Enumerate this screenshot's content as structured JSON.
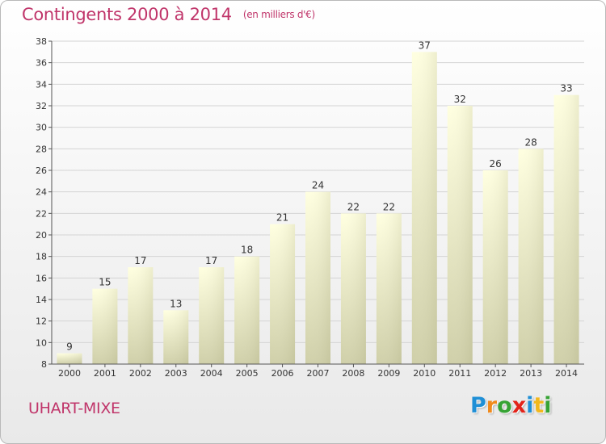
{
  "header": {
    "title": "Contingents 2000 à 2014",
    "subtitle": "(en milliers d'€)"
  },
  "footer": {
    "commune": "UHART-MIXE",
    "logo": {
      "letters": [
        "P",
        "r",
        "o",
        "x",
        "i",
        "t",
        "i"
      ],
      "colors": [
        "#1f8fd6",
        "#f08a1c",
        "#36a334",
        "#e2231a",
        "#1f8fd6",
        "#f2b81d",
        "#36a334"
      ]
    }
  },
  "colors": {
    "bar_top": "#ffffe0",
    "bar_bottom": "#cfcfa8",
    "title": "#c0356a"
  },
  "chart_data": {
    "type": "bar",
    "categories": [
      "2000",
      "2001",
      "2002",
      "2003",
      "2004",
      "2005",
      "2006",
      "2007",
      "2008",
      "2009",
      "2010",
      "2011",
      "2012",
      "2013",
      "2014"
    ],
    "values": [
      9,
      15,
      17,
      13,
      17,
      18,
      21,
      24,
      22,
      22,
      37,
      32,
      26,
      28,
      33
    ],
    "title": "Contingents 2000 à 2014",
    "ylim": [
      8,
      38
    ],
    "yticks": [
      8,
      10,
      12,
      14,
      16,
      18,
      20,
      22,
      24,
      26,
      28,
      30,
      32,
      34,
      36,
      38
    ],
    "grid": true,
    "data_labels": true
  }
}
